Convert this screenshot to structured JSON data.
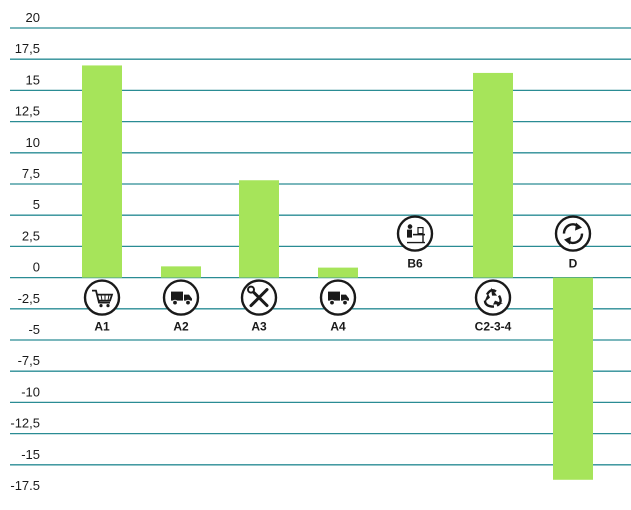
{
  "chart_data": {
    "type": "bar",
    "title": "",
    "xlabel": "",
    "ylabel": "",
    "ylim": [
      -17.5,
      20
    ],
    "y_ticks": [
      "20",
      "17,5",
      "15",
      "12,5",
      "10",
      "7,5",
      "5",
      "2,5",
      "0",
      "-2,5",
      "-5",
      "-7,5",
      "-10",
      "-12,5",
      "-15",
      "-17.5"
    ],
    "y_tick_values": [
      20,
      17.5,
      15,
      12.5,
      10,
      7.5,
      5,
      2.5,
      0,
      -2.5,
      -5,
      -7.5,
      -10,
      -12.5,
      -15,
      -17.5
    ],
    "grid": true,
    "categories": [
      "A1",
      "A2",
      "A3",
      "A4",
      "B6",
      "C2-3-4",
      "D"
    ],
    "category_icons": [
      "shopping-cart-icon",
      "truck-icon",
      "wrench-screwdriver-icon",
      "truck-icon",
      "office-worker-icon",
      "recycle-icon",
      "cycle-icon"
    ],
    "values": [
      17.0,
      0.9,
      7.8,
      0.8,
      0.0,
      16.4,
      -16.2
    ],
    "colors": {
      "bar": "#a6e45a",
      "grid": "#2a8c94",
      "icon": "#1a1a1a"
    }
  }
}
